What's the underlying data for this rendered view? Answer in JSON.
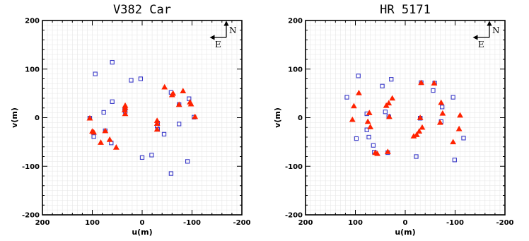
{
  "chart_data": [
    {
      "type": "scatter",
      "title": "V382 Car",
      "xlabel": "u(m)",
      "ylabel": "v(m)",
      "xlim": [
        200,
        -200
      ],
      "ylim": [
        -200,
        200
      ],
      "xticks": [
        "200",
        "100",
        "0",
        "-100",
        "-200"
      ],
      "yticks": [
        "200",
        "100",
        "0",
        "-100",
        "-200"
      ],
      "grid": true,
      "compass": {
        "north": "N",
        "east": "E"
      },
      "colors": {
        "squares": "#3a3ac8",
        "triangles": "#ff2200"
      },
      "series": [
        {
          "marker": "square",
          "points": [
            [
              105,
              -1
            ],
            [
              97,
              -39
            ],
            [
              94,
              90
            ],
            [
              77,
              11
            ],
            [
              74,
              -27
            ],
            [
              62,
              -52
            ],
            [
              60,
              33
            ],
            [
              60,
              114
            ],
            [
              35,
              16
            ],
            [
              34,
              13
            ],
            [
              22,
              77
            ],
            [
              3,
              80
            ],
            [
              0,
              -82
            ],
            [
              -19,
              -77
            ],
            [
              -30,
              -17
            ],
            [
              -31,
              -24
            ],
            [
              -31,
              -11
            ],
            [
              -44,
              -34
            ],
            [
              -58,
              -115
            ],
            [
              -58,
              52
            ],
            [
              -74,
              -13
            ],
            [
              -74,
              27
            ],
            [
              -91,
              -90
            ],
            [
              -94,
              39
            ],
            [
              -104,
              1
            ]
          ]
        },
        {
          "marker": "triangle",
          "points": [
            [
              105,
              -1
            ],
            [
              100,
              -28
            ],
            [
              97,
              -30
            ],
            [
              83,
              -51
            ],
            [
              74,
              -27
            ],
            [
              65,
              -45
            ],
            [
              52,
              -61
            ],
            [
              35,
              16
            ],
            [
              34,
              8
            ],
            [
              34,
              21
            ],
            [
              34,
              25
            ],
            [
              -30,
              -6
            ],
            [
              -30,
              -24
            ],
            [
              -30,
              -12
            ],
            [
              -45,
              63
            ],
            [
              -60,
              47
            ],
            [
              -62,
              50
            ],
            [
              -74,
              27
            ],
            [
              -82,
              55
            ],
            [
              -96,
              32
            ],
            [
              -98,
              28
            ],
            [
              -106,
              2
            ]
          ]
        }
      ]
    },
    {
      "type": "scatter",
      "title": "HR 5171",
      "xlabel": "u(m)",
      "ylabel": "v(m)",
      "xlim": [
        200,
        -200
      ],
      "ylim": [
        -200,
        200
      ],
      "xticks": [
        "200",
        "100",
        "0",
        "-100",
        "-200"
      ],
      "yticks": [
        "200",
        "100",
        "0",
        "-100",
        "-200"
      ],
      "grid": true,
      "compass": {
        "north": "N",
        "east": "E"
      },
      "colors": {
        "squares": "#3a3ac8",
        "triangles": "#ff2200"
      },
      "series": [
        {
          "marker": "square",
          "points": [
            [
              117,
              42
            ],
            [
              98,
              -43
            ],
            [
              94,
              86
            ],
            [
              77,
              -25
            ],
            [
              77,
              8
            ],
            [
              73,
              -40
            ],
            [
              64,
              -57
            ],
            [
              62,
              -71
            ],
            [
              46,
              65
            ],
            [
              40,
              12
            ],
            [
              35,
              -72
            ],
            [
              33,
              2
            ],
            [
              28,
              79
            ],
            [
              -22,
              -80
            ],
            [
              -30,
              -1
            ],
            [
              -32,
              72
            ],
            [
              -56,
              56
            ],
            [
              -59,
              71
            ],
            [
              -72,
              -8
            ],
            [
              -74,
              22
            ],
            [
              -96,
              42
            ],
            [
              -99,
              -87
            ],
            [
              -117,
              -42
            ],
            [
              -30,
              -1
            ]
          ]
        },
        {
          "marker": "triangle",
          "points": [
            [
              106,
              -4
            ],
            [
              103,
              24
            ],
            [
              93,
              51
            ],
            [
              75,
              -8
            ],
            [
              72,
              10
            ],
            [
              70,
              -19
            ],
            [
              60,
              -72
            ],
            [
              56,
              -74
            ],
            [
              38,
              25
            ],
            [
              33,
              30
            ],
            [
              35,
              -70
            ],
            [
              32,
              2
            ],
            [
              26,
              40
            ],
            [
              -17,
              -38
            ],
            [
              -23,
              -35
            ],
            [
              -28,
              -28
            ],
            [
              -30,
              0
            ],
            [
              -34,
              -20
            ],
            [
              -32,
              72
            ],
            [
              -58,
              71
            ],
            [
              -70,
              -10
            ],
            [
              -72,
              31
            ],
            [
              -75,
              9
            ],
            [
              -96,
              -50
            ],
            [
              -108,
              -23
            ],
            [
              -110,
              5
            ]
          ]
        }
      ]
    }
  ]
}
